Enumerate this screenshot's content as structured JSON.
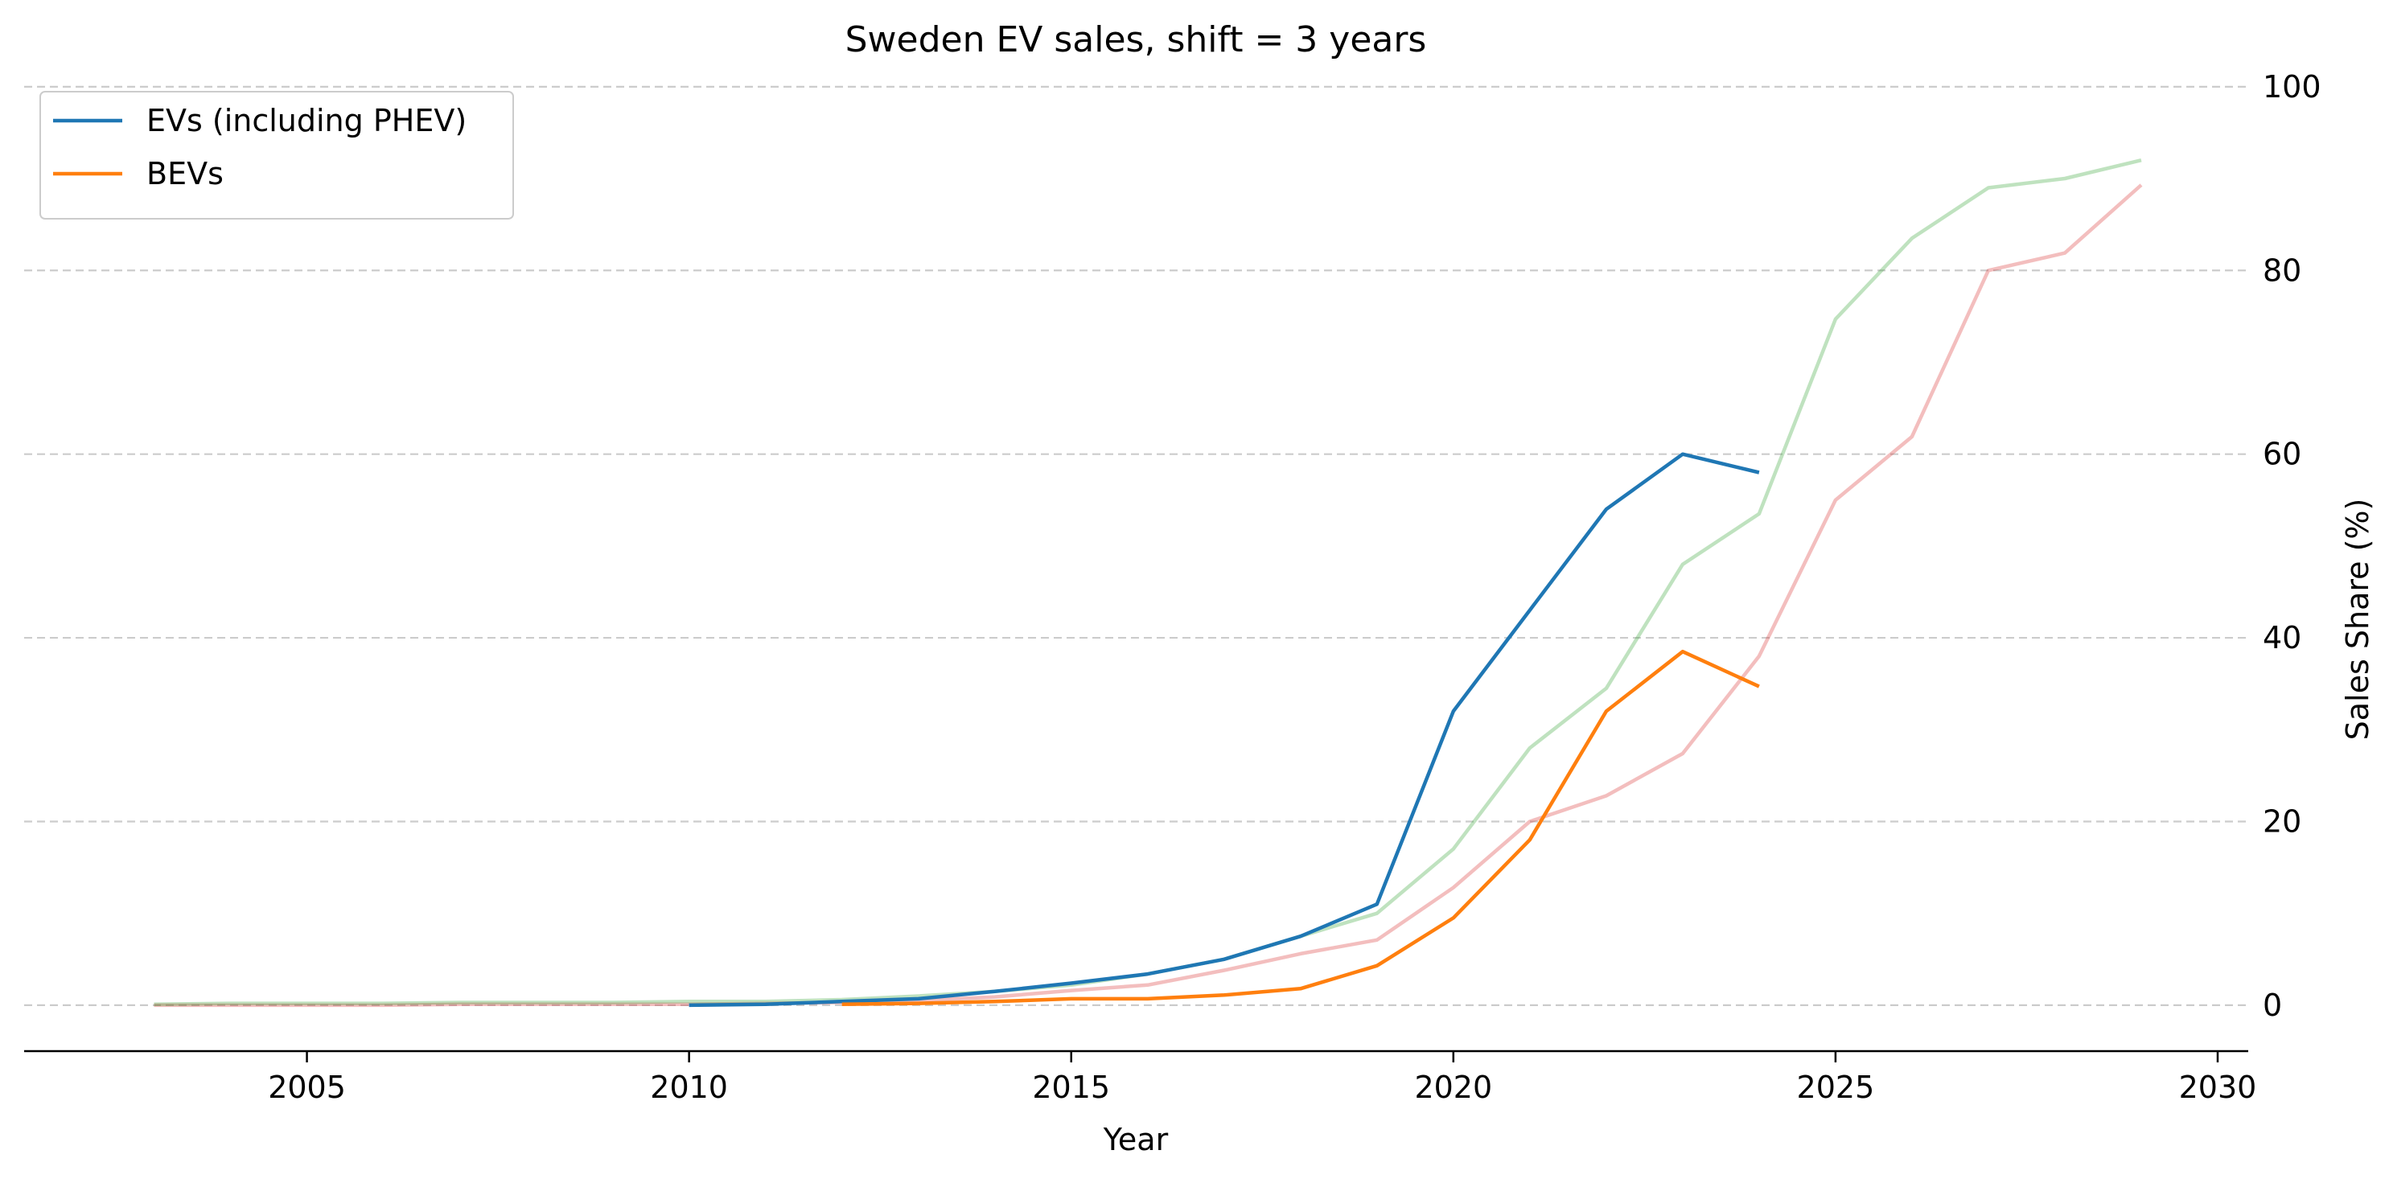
{
  "chart_data": {
    "type": "line",
    "title": "Sweden EV sales, shift = 3 years",
    "xlabel": "Year",
    "ylabel": "Sales Share (%)",
    "xlim": [
      2001.3,
      2030.4
    ],
    "ylim": [
      -5,
      102
    ],
    "xticks": [
      2005,
      2010,
      2015,
      2020,
      2025,
      2030
    ],
    "yticks": [
      0,
      20,
      40,
      60,
      80,
      100
    ],
    "y_axis_side": "right",
    "grid": "horizontal dashed",
    "legend_position": "top-left",
    "series": [
      {
        "name": "EVs (including PHEV)",
        "color": "#1f77b4",
        "x": [
          2010,
          2011,
          2012,
          2013,
          2014,
          2015,
          2016,
          2017,
          2018,
          2019,
          2020,
          2021,
          2022,
          2023,
          2024
        ],
        "y": [
          0.0,
          0.1,
          0.4,
          0.7,
          1.5,
          2.4,
          3.4,
          5.0,
          7.5,
          11.0,
          32.0,
          43.0,
          54.0,
          60.0,
          58.0
        ]
      },
      {
        "name": "BEVs",
        "color": "#ff7f0e",
        "x": [
          2012,
          2013,
          2014,
          2015,
          2016,
          2017,
          2018,
          2019,
          2020,
          2021,
          2022,
          2023,
          2024
        ],
        "y": [
          0.1,
          0.2,
          0.4,
          0.7,
          0.7,
          1.1,
          1.8,
          4.3,
          9.5,
          18.0,
          32.0,
          38.5,
          34.7
        ]
      },
      {
        "color": "#2ca02c",
        "opacity": 0.3,
        "x": [
          2003,
          2004,
          2005,
          2006,
          2007,
          2008,
          2009,
          2010,
          2011,
          2012,
          2013,
          2014,
          2015,
          2016,
          2017,
          2018,
          2019,
          2020,
          2021,
          2022,
          2023,
          2024,
          2025,
          2026,
          2027,
          2028,
          2029
        ],
        "y": [
          0.1,
          0.2,
          0.2,
          0.2,
          0.3,
          0.3,
          0.3,
          0.4,
          0.4,
          0.6,
          1.0,
          1.5,
          2.2,
          3.4,
          5.0,
          7.5,
          10.0,
          17.0,
          28.0,
          34.5,
          48.0,
          53.5,
          74.7,
          83.5,
          89.0,
          90.0,
          92.0
        ]
      },
      {
        "color": "#d62728",
        "opacity": 0.3,
        "x": [
          2003,
          2004,
          2005,
          2006,
          2007,
          2008,
          2009,
          2010,
          2011,
          2012,
          2013,
          2014,
          2015,
          2016,
          2017,
          2018,
          2019,
          2020,
          2021,
          2022,
          2023,
          2024,
          2025,
          2026,
          2027,
          2028,
          2029
        ],
        "y": [
          0.0,
          0.0,
          0.0,
          0.0,
          0.1,
          0.1,
          0.1,
          0.1,
          0.2,
          0.3,
          0.5,
          0.9,
          1.6,
          2.2,
          3.8,
          5.6,
          7.1,
          12.8,
          20.0,
          22.8,
          27.4,
          38.0,
          55.0,
          61.9,
          80.0,
          81.9,
          89.3
        ]
      }
    ]
  }
}
